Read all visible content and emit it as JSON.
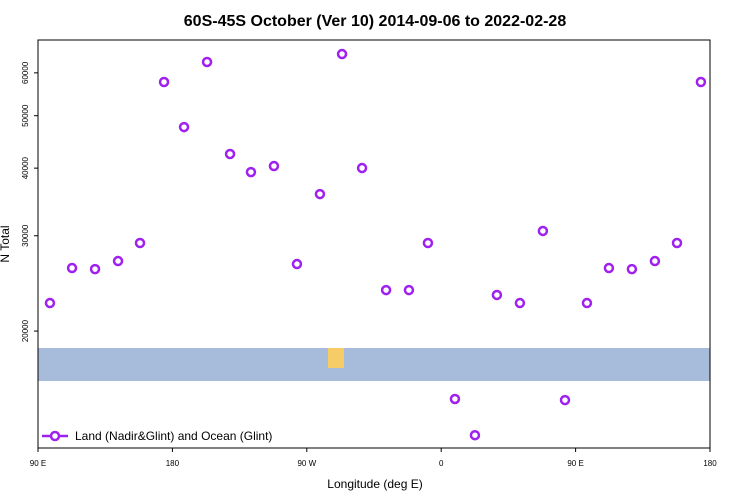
{
  "chart_data": {
    "type": "scatter",
    "title": "60S-45S October (Ver 10)   2014-09-06 to 2022-02-28",
    "xlabel": "Longitude (deg E)",
    "ylabel": "N Total",
    "xlim": [
      90,
      540
    ],
    "xticks": [
      {
        "value": 90,
        "label": "90 E"
      },
      180,
      {
        "value": 270,
        "label": "90 W"
      },
      {
        "value": 360,
        "label": "0"
      },
      {
        "value": 450,
        "label": "90 E"
      },
      {
        "value": 540,
        "label": "180"
      }
    ],
    "ylim": [
      12160,
      69000
    ],
    "log_y": true,
    "yticks": [
      20000,
      30000,
      40000,
      50000,
      60000
    ],
    "legend": "bottom-left",
    "series": [
      {
        "name": "Land (Nadir&Glint) and Ocean (Glint)",
        "color": "#a020f0",
        "x": [
          98,
          112.8,
          128.2,
          143.6,
          158.3,
          174.4,
          187.8,
          203.2,
          218.6,
          232.6,
          248,
          263.4,
          278.8,
          293.6,
          307,
          323.1,
          338.4,
          351.1,
          369.2,
          382.6,
          397.3,
          412.7,
          428.1,
          442.9,
          457.6,
          472.3,
          487.7,
          503.1,
          517.9,
          533.9
        ],
        "values": [
          22530,
          26150,
          26030,
          26940,
          29090,
          57710,
          47640,
          62840,
          42480,
          39330,
          40360,
          26600,
          35820,
          65000,
          40020,
          23810,
          23810,
          29090,
          14980,
          12840,
          23320,
          22530,
          30620,
          14910,
          22530,
          26150,
          26030,
          26940,
          29090,
          57710
        ]
      }
    ]
  }
}
